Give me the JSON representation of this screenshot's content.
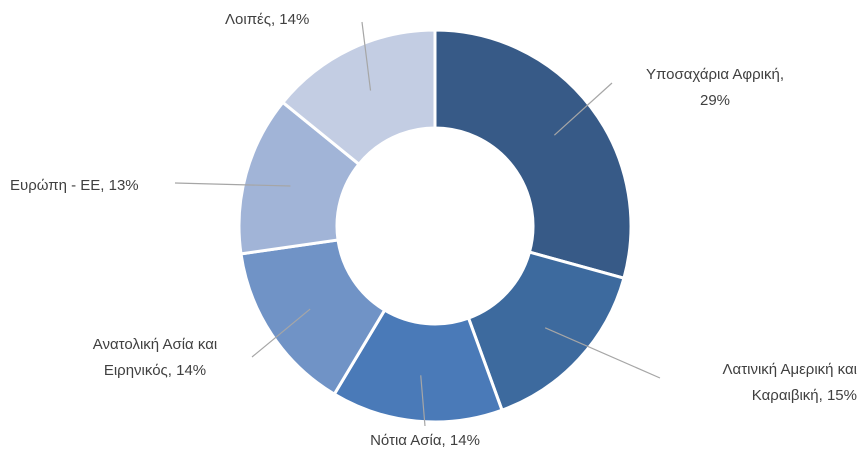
{
  "chart_data": {
    "type": "donut",
    "categories": [
      "Υποσαχάρια Αφρική",
      "Λατινική Αμερική και Καραιβική",
      "Νότια Ασία",
      "Ανατολική Ασία και Ειρηνικός",
      "Ευρώπη - ΕΕ",
      "Λοιπές"
    ],
    "values": [
      29,
      15,
      14,
      14,
      13,
      14
    ],
    "value_labels": [
      "Υποσαχάρια Αφρική,\n29%",
      "Λατινική Αμερική και\nΚαραιβική, 15%",
      "Νότια Ασία, 14%",
      "Ανατολική Ασία και\nΕιρηνικός, 14%",
      "Ευρώπη - ΕΕ, 13%",
      "Λοιπές, 14%"
    ],
    "colors": [
      "#375a87",
      "#3d6a9e",
      "#4a7ab8",
      "#7093c6",
      "#a1b4d7",
      "#c3cde3"
    ]
  }
}
